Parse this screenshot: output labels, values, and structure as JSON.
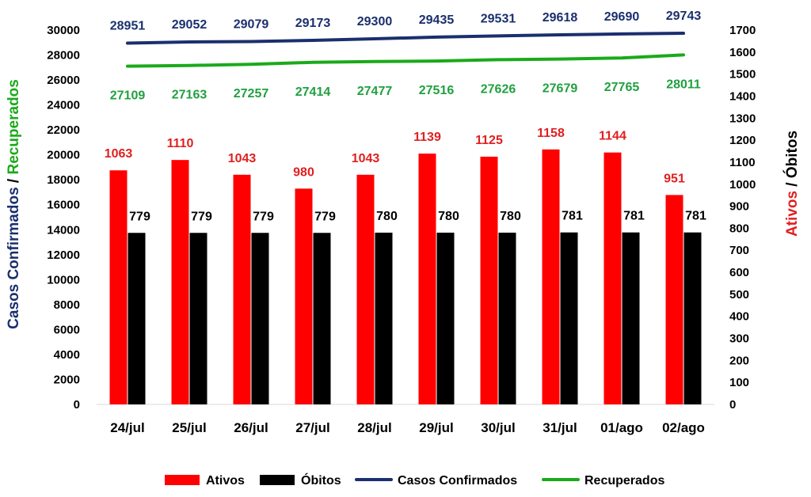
{
  "chart_data": {
    "type": "bar",
    "categories": [
      "24/jul",
      "25/jul",
      "26/jul",
      "27/jul",
      "28/jul",
      "29/jul",
      "30/jul",
      "31/jul",
      "01/ago",
      "02/ago"
    ],
    "series": [
      {
        "name": "Ativos",
        "type": "bar",
        "axis": "right",
        "color": "#ff0000",
        "label_color": "#e02020",
        "values": [
          1063,
          1110,
          1043,
          980,
          1043,
          1139,
          1125,
          1158,
          1144,
          951
        ]
      },
      {
        "name": "Óbitos",
        "type": "bar",
        "axis": "right",
        "color": "#000000",
        "label_color": "#000000",
        "values": [
          779,
          779,
          779,
          779,
          780,
          780,
          780,
          781,
          781,
          781
        ]
      },
      {
        "name": "Casos Confirmados",
        "type": "line",
        "axis": "left",
        "color": "#1a2f6e",
        "label_color": "#1a2f6e",
        "values": [
          28951,
          29052,
          29079,
          29173,
          29300,
          29435,
          29531,
          29618,
          29690,
          29743
        ]
      },
      {
        "name": "Recuperados",
        "type": "line",
        "axis": "left",
        "color": "#1aaa1a",
        "label_color": "#20a040",
        "values": [
          27109,
          27163,
          27257,
          27414,
          27477,
          27516,
          27626,
          27679,
          27765,
          28011
        ]
      }
    ],
    "y_left": {
      "label_parts": [
        {
          "text": "Casos Confirmados",
          "color": "#1a2f6e"
        },
        {
          "text": " / ",
          "color": "#000000"
        },
        {
          "text": "Recuperados",
          "color": "#1aaa1a"
        }
      ],
      "ylim": [
        0,
        30000
      ],
      "ticks": [
        0,
        2000,
        4000,
        6000,
        8000,
        10000,
        12000,
        14000,
        16000,
        18000,
        20000,
        22000,
        24000,
        26000,
        28000,
        30000
      ]
    },
    "y_right": {
      "label_parts": [
        {
          "text": "Ativos",
          "color": "#e02020"
        },
        {
          "text": " / ",
          "color": "#000000"
        },
        {
          "text": "Óbitos",
          "color": "#000000"
        }
      ],
      "ylim": [
        0,
        1700
      ],
      "ticks": [
        0,
        100,
        200,
        300,
        400,
        500,
        600,
        700,
        800,
        900,
        1000,
        1100,
        1200,
        1300,
        1400,
        1500,
        1600,
        1700
      ]
    },
    "grid": false,
    "legend": "bottom",
    "title": ""
  }
}
